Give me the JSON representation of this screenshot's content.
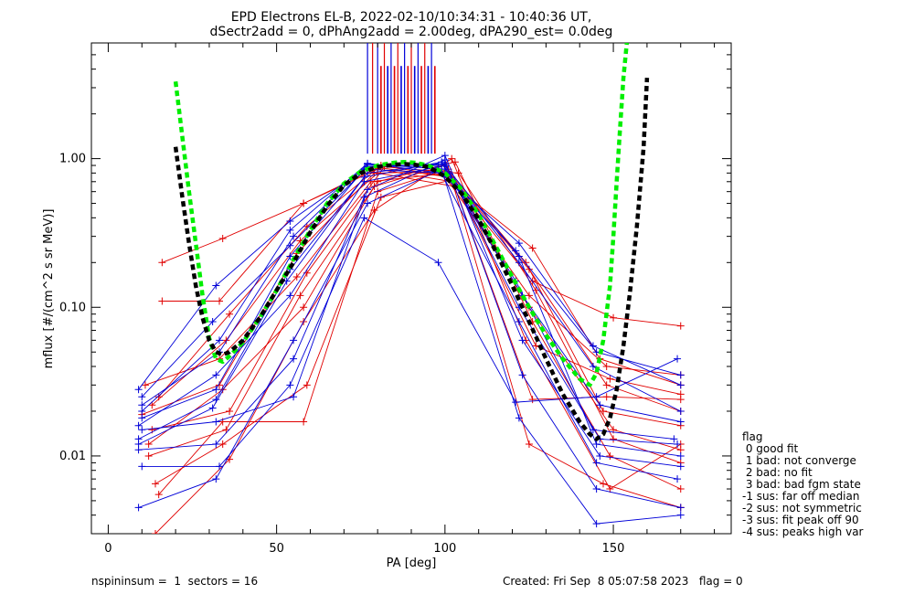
{
  "chart_data": {
    "type": "line",
    "title": "EPD Electrons EL-B, 2022-02-10/10:34:31 - 10:40:36 UT,",
    "subtitle": "dSectr2add = 0, dPhAng2add = 2.00deg, dPA290_est=    0.0deg",
    "xlabel": "PA [deg]",
    "ylabel": "mflux [#/(cm^2 s sr MeV)]",
    "xlim": [
      -5,
      185
    ],
    "ylim": [
      0.003,
      6
    ],
    "yscale": "log",
    "xticks": [
      0,
      50,
      100,
      150
    ],
    "xtick_labels": [
      "0",
      "50",
      "100",
      "150"
    ],
    "yticks": [
      0.01,
      0.1,
      1
    ],
    "ytick_labels": [
      "0.01",
      "0.10",
      "1.00"
    ],
    "colors": {
      "red": "#e00000",
      "blue": "#0000d8",
      "green": "#00ee00",
      "black": "#000000"
    },
    "series": [
      {
        "color": "red",
        "x": [
          10,
          33,
          56,
          79,
          101,
          124,
          147,
          170
        ],
        "y": [
          0.019,
          0.03,
          0.23,
          0.8,
          0.82,
          0.2,
          0.02,
          0.016
        ]
      },
      {
        "color": "red",
        "x": [
          13,
          36,
          59,
          82,
          104,
          127,
          150,
          170
        ],
        "y": [
          0.015,
          0.02,
          0.17,
          0.88,
          0.8,
          0.13,
          0.013,
          0.009
        ]
      },
      {
        "color": "red",
        "x": [
          16,
          34,
          58,
          80,
          102,
          126,
          150,
          170
        ],
        "y": [
          0.2,
          0.29,
          0.5,
          0.85,
          0.7,
          0.15,
          0.085,
          0.075
        ]
      },
      {
        "color": "red",
        "x": [
          16,
          33,
          58,
          80,
          100,
          125,
          148,
          170
        ],
        "y": [
          0.11,
          0.11,
          0.5,
          0.87,
          0.76,
          0.12,
          0.04,
          0.035
        ]
      },
      {
        "color": "red",
        "x": [
          12,
          35,
          57,
          80,
          103,
          126,
          149,
          170
        ],
        "y": [
          0.01,
          0.015,
          0.12,
          0.7,
          0.95,
          0.08,
          0.01,
          0.006
        ]
      },
      {
        "color": "red",
        "x": [
          14,
          34,
          59,
          81,
          102,
          125,
          147,
          170
        ],
        "y": [
          0.0065,
          0.012,
          0.03,
          0.55,
          0.72,
          0.012,
          0.0065,
          0.0045
        ]
      },
      {
        "color": "red",
        "x": [
          15,
          34,
          58,
          80,
          101,
          126,
          148,
          170
        ],
        "y": [
          0.0055,
          0.017,
          0.017,
          0.6,
          0.85,
          0.024,
          0.025,
          0.024
        ]
      },
      {
        "color": "red",
        "x": [
          14,
          36,
          58,
          79,
          102,
          124,
          149,
          170
        ],
        "y": [
          0.003,
          0.0095,
          0.08,
          0.45,
          1.0,
          0.06,
          0.006,
          0.012
        ]
      },
      {
        "color": "red",
        "x": [
          11,
          33,
          56,
          78,
          101,
          125,
          148,
          170
        ],
        "y": [
          0.03,
          0.045,
          0.16,
          0.7,
          0.8,
          0.18,
          0.03,
          0.02
        ]
      },
      {
        "color": "red",
        "x": [
          13,
          35,
          57,
          80,
          103,
          126,
          146,
          170
        ],
        "y": [
          0.022,
          0.06,
          0.28,
          0.8,
          0.65,
          0.25,
          0.045,
          0.03
        ]
      },
      {
        "color": "red",
        "x": [
          12,
          34,
          58,
          79,
          100,
          125,
          150,
          170
        ],
        "y": [
          0.012,
          0.028,
          0.1,
          0.65,
          0.9,
          0.1,
          0.015,
          0.011
        ]
      },
      {
        "color": "red",
        "x": [
          15,
          36,
          59,
          81,
          102,
          127,
          149,
          170
        ],
        "y": [
          0.025,
          0.09,
          0.35,
          0.9,
          0.75,
          0.055,
          0.033,
          0.026
        ]
      },
      {
        "color": "blue",
        "x": [
          10,
          32,
          54,
          77,
          100,
          122,
          145,
          170
        ],
        "y": [
          0.018,
          0.028,
          0.22,
          0.9,
          0.9,
          0.22,
          0.012,
          0.01
        ]
      },
      {
        "color": "blue",
        "x": [
          9,
          32,
          55,
          77,
          99,
          122,
          145,
          170
        ],
        "y": [
          0.0045,
          0.007,
          0.06,
          0.5,
          0.85,
          0.018,
          0.0035,
          0.004
        ]
      },
      {
        "color": "blue",
        "x": [
          10,
          33,
          54,
          76,
          98,
          121,
          145,
          169
        ],
        "y": [
          0.0085,
          0.0085,
          0.03,
          0.4,
          0.2,
          0.023,
          0.025,
          0.045
        ]
      },
      {
        "color": "blue",
        "x": [
          9,
          32,
          54,
          76,
          99,
          122,
          144,
          170
        ],
        "y": [
          0.028,
          0.14,
          0.38,
          0.85,
          0.8,
          0.27,
          0.055,
          0.03
        ]
      },
      {
        "color": "blue",
        "x": [
          10,
          32,
          55,
          77,
          100,
          123,
          146,
          170
        ],
        "y": [
          0.015,
          0.017,
          0.025,
          0.62,
          1.05,
          0.06,
          0.01,
          0.0085
        ]
      },
      {
        "color": "blue",
        "x": [
          9,
          31,
          53,
          76,
          99,
          121,
          144,
          168
        ],
        "y": [
          0.012,
          0.021,
          0.15,
          0.75,
          0.95,
          0.15,
          0.015,
          0.013
        ]
      },
      {
        "color": "blue",
        "x": [
          10,
          33,
          55,
          77,
          100,
          123,
          146,
          170
        ],
        "y": [
          0.022,
          0.05,
          0.3,
          0.92,
          0.85,
          0.12,
          0.022,
          0.017
        ]
      },
      {
        "color": "blue",
        "x": [
          9,
          32,
          54,
          76,
          98,
          122,
          145,
          169
        ],
        "y": [
          0.016,
          0.035,
          0.12,
          0.7,
          0.88,
          0.08,
          0.009,
          0.007
        ]
      },
      {
        "color": "blue",
        "x": [
          10,
          31,
          54,
          77,
          99,
          122,
          144,
          170
        ],
        "y": [
          0.025,
          0.08,
          0.26,
          0.88,
          0.92,
          0.2,
          0.04,
          0.02
        ]
      },
      {
        "color": "blue",
        "x": [
          9,
          32,
          55,
          76,
          100,
          123,
          145,
          170
        ],
        "y": [
          0.011,
          0.012,
          0.045,
          0.55,
          0.98,
          0.035,
          0.006,
          0.0045
        ]
      },
      {
        "color": "blue",
        "x": [
          10,
          33,
          54,
          77,
          99,
          121,
          145,
          170
        ],
        "y": [
          0.02,
          0.06,
          0.33,
          0.93,
          0.8,
          0.24,
          0.05,
          0.035
        ]
      },
      {
        "color": "blue",
        "x": [
          9,
          32,
          54,
          77,
          100,
          122,
          146,
          169
        ],
        "y": [
          0.013,
          0.024,
          0.18,
          0.8,
          0.93,
          0.1,
          0.013,
          0.012
        ]
      }
    ],
    "fit_lines": [
      {
        "name": "green fit",
        "color": "green",
        "x": [
          20,
          22,
          24,
          26,
          28,
          30,
          32,
          34,
          36,
          40,
          45,
          50,
          55,
          60,
          65,
          70,
          75,
          80,
          85,
          88,
          91,
          95,
          100,
          105,
          110,
          115,
          120,
          125,
          130,
          135,
          140,
          143,
          145,
          147,
          149,
          150,
          151,
          152,
          153,
          154
        ],
        "y": [
          3.3,
          1.4,
          0.6,
          0.27,
          0.12,
          0.062,
          0.045,
          0.043,
          0.047,
          0.058,
          0.085,
          0.13,
          0.21,
          0.33,
          0.5,
          0.68,
          0.82,
          0.9,
          0.94,
          0.95,
          0.94,
          0.9,
          0.8,
          0.62,
          0.42,
          0.26,
          0.16,
          0.1,
          0.065,
          0.045,
          0.033,
          0.03,
          0.036,
          0.06,
          0.14,
          0.3,
          0.7,
          1.6,
          3.5,
          6.0
        ]
      },
      {
        "name": "black fit",
        "color": "black",
        "x": [
          20,
          22,
          24,
          26,
          28,
          30,
          32,
          34,
          36,
          40,
          45,
          50,
          55,
          60,
          65,
          70,
          75,
          80,
          85,
          88,
          91,
          95,
          100,
          105,
          110,
          115,
          120,
          125,
          130,
          135,
          140,
          143,
          145,
          147,
          149,
          151,
          153,
          155,
          157,
          159,
          160
        ],
        "y": [
          1.2,
          0.55,
          0.27,
          0.14,
          0.085,
          0.06,
          0.05,
          0.048,
          0.05,
          0.06,
          0.085,
          0.13,
          0.2,
          0.32,
          0.48,
          0.66,
          0.8,
          0.88,
          0.91,
          0.92,
          0.91,
          0.88,
          0.76,
          0.58,
          0.39,
          0.24,
          0.14,
          0.08,
          0.045,
          0.026,
          0.017,
          0.014,
          0.013,
          0.014,
          0.018,
          0.028,
          0.055,
          0.13,
          0.35,
          1.2,
          3.5
        ]
      }
    ],
    "pa_bars": {
      "y_from": 1.08,
      "y_to": 6.0,
      "full_height_x": [
        77,
        78.5,
        80,
        82,
        84,
        86,
        88,
        90,
        92,
        94,
        96
      ],
      "short_x": [
        81,
        83,
        85,
        87,
        89,
        91,
        93,
        95,
        97
      ],
      "short_y_to": 4.2,
      "colors": [
        "blue",
        "red",
        "blue",
        "red",
        "blue",
        "red",
        "blue",
        "red",
        "blue",
        "red",
        "blue"
      ]
    }
  },
  "legend": {
    "title": "flag",
    "items": [
      " 0 good fit",
      " 1 bad: not converge",
      " 2 bad: no fit",
      " 3 bad: bad fgm state",
      "-1 sus: far off median",
      "-2 sus: not symmetric",
      "-3 sus: fit peak off 90",
      "-4 sus: peaks high var"
    ]
  },
  "footer": {
    "left": "nspininsum =  1  sectors = 16",
    "right": "Created: Fri Sep  8 05:07:58 2023   flag = 0"
  }
}
